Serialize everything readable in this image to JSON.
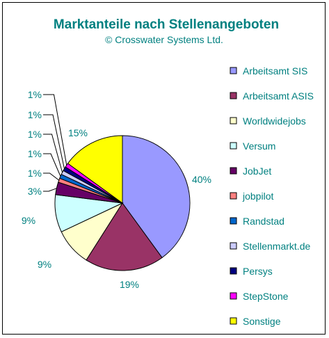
{
  "chart_data": {
    "type": "pie",
    "title": "Marktanteile nach Stellenangeboten",
    "subtitle": "© Crosswater Systems Ltd.",
    "legend_position": "right",
    "slices": [
      {
        "name": "Arbeitsamt SIS",
        "value": 40,
        "label": "40%",
        "color": "#9999ff"
      },
      {
        "name": "Arbeitsamt ASIS",
        "value": 19,
        "label": "19%",
        "color": "#993366"
      },
      {
        "name": "Worldwidejobs",
        "value": 9,
        "label": "9%",
        "color": "#ffffcc"
      },
      {
        "name": "Versum",
        "value": 9,
        "label": "9%",
        "color": "#ccffff"
      },
      {
        "name": "JobJet",
        "value": 3,
        "label": "3%",
        "color": "#660066"
      },
      {
        "name": "jobpilot",
        "value": 1,
        "label": "1%",
        "color": "#ff8080"
      },
      {
        "name": "Randstad",
        "value": 1,
        "label": "1%",
        "color": "#0066cc"
      },
      {
        "name": "Stellenmarkt.de",
        "value": 1,
        "label": "1%",
        "color": "#ccccff"
      },
      {
        "name": "Persys",
        "value": 1,
        "label": "1%",
        "color": "#000080"
      },
      {
        "name": "StepStone",
        "value": 1,
        "label": "1%",
        "color": "#ff00ff"
      },
      {
        "name": "Sonstige",
        "value": 15,
        "label": "15%",
        "color": "#ffff00"
      }
    ]
  }
}
